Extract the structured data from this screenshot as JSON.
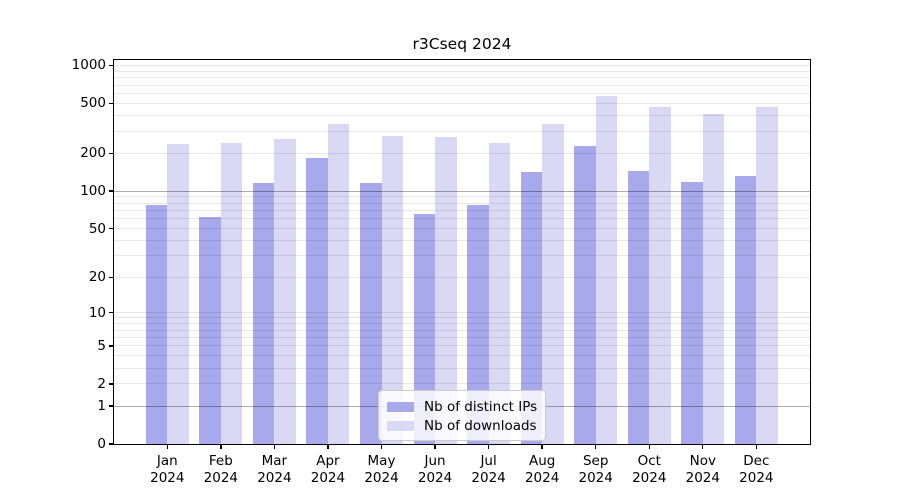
{
  "chart_data": {
    "type": "bar",
    "title": "r3Cseq 2024",
    "categories": [
      "Jan 2024",
      "Feb 2024",
      "Mar 2024",
      "Apr 2024",
      "May 2024",
      "Jun 2024",
      "Jul 2024",
      "Aug 2024",
      "Sep 2024",
      "Oct 2024",
      "Nov 2024",
      "Dec 2024"
    ],
    "series": [
      {
        "name": "Nb of distinct IPs",
        "color": "#a8a8ec",
        "values": [
          78,
          62,
          116,
          184,
          116,
          66,
          77,
          142,
          228,
          144,
          118,
          131
        ]
      },
      {
        "name": "Nb of downloads",
        "color": "#d9d9f6",
        "values": [
          240,
          243,
          260,
          343,
          275,
          270,
          243,
          342,
          576,
          467,
          413,
          467
        ]
      }
    ],
    "xlabel": "",
    "ylabel": "",
    "yscale": "log10(value+1)",
    "ylim": [
      0,
      1100
    ],
    "yticks": [
      1000,
      500,
      200,
      100,
      50,
      20,
      10,
      5,
      2,
      1,
      0
    ],
    "major_gridlines": [
      100,
      1
    ],
    "minor_gridlines": [
      3,
      4,
      6,
      7,
      8,
      9,
      30,
      40,
      60,
      70,
      80,
      90,
      300,
      400,
      600,
      700,
      800,
      900
    ],
    "grid": true,
    "legend_position": "lower-center-inside"
  }
}
